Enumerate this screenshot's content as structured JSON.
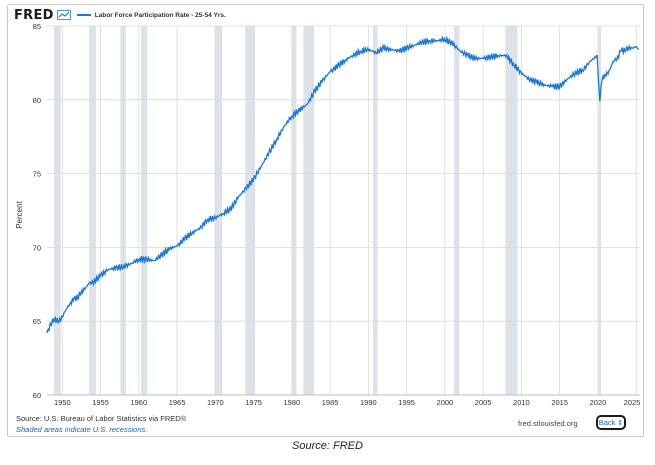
{
  "header": {
    "logo": "FRED",
    "logo_icon": "fred-graph-icon",
    "series_title": "Labor Force Participation Rate - 25-54 Yrs."
  },
  "footer": {
    "source": "Source: U.S. Bureau of Labor Statistics via FRED®",
    "shaded_note": "Shaded areas indicate U.S. recessions.",
    "url": "fred.stlouisfed.org",
    "back_label": "Back",
    "back_icon": "expand-arrows-icon"
  },
  "caption": "Source: FRED",
  "colors": {
    "line": "#1f77d4",
    "recession": "#dde2e8",
    "grid": "#d9d9d9"
  },
  "chart_data": {
    "type": "line",
    "title": "Labor Force Participation Rate - 25-54 Yrs.",
    "ylabel": "Percent",
    "xlabel": "",
    "xlim": [
      1948.0,
      2025.5
    ],
    "ylim": [
      60,
      85
    ],
    "y_ticks": [
      60,
      65,
      70,
      75,
      80,
      85
    ],
    "x_ticks": [
      1950,
      1955,
      1960,
      1965,
      1970,
      1975,
      1980,
      1985,
      1990,
      1995,
      2000,
      2005,
      2010,
      2015,
      2020,
      2025
    ],
    "x_tick_labels": [
      "1950",
      "1955",
      "1960",
      "1965",
      "1970",
      "1975",
      "1980",
      "1985",
      "1990",
      "1995",
      "2000",
      "2005",
      "2010",
      "2015",
      "2020",
      "2025"
    ],
    "grid": true,
    "recessions": [
      [
        1948.9,
        1949.8
      ],
      [
        1953.5,
        1954.4
      ],
      [
        1957.6,
        1958.3
      ],
      [
        1960.3,
        1961.1
      ],
      [
        1969.9,
        1970.9
      ],
      [
        1973.9,
        1975.2
      ],
      [
        1980.0,
        1980.6
      ],
      [
        1981.5,
        1982.9
      ],
      [
        1990.6,
        1991.2
      ],
      [
        2001.2,
        2001.9
      ],
      [
        2007.9,
        2009.5
      ],
      [
        2020.1,
        2020.4
      ]
    ],
    "series": [
      {
        "name": "Labor Force Participation Rate - 25-54 Yrs.",
        "x": [
          1948.0,
          1948.5,
          1949.0,
          1949.5,
          1950.0,
          1950.5,
          1951.0,
          1951.5,
          1952.0,
          1952.5,
          1953.0,
          1953.5,
          1954.0,
          1955.0,
          1956.0,
          1957.0,
          1958.0,
          1959.0,
          1960.0,
          1961.0,
          1962.0,
          1963.0,
          1964.0,
          1965.0,
          1966.0,
          1967.0,
          1968.0,
          1969.0,
          1970.0,
          1971.0,
          1972.0,
          1973.0,
          1974.0,
          1975.0,
          1976.0,
          1977.0,
          1978.0,
          1979.0,
          1980.0,
          1981.0,
          1982.0,
          1983.0,
          1984.0,
          1985.0,
          1986.0,
          1987.0,
          1988.0,
          1989.0,
          1990.0,
          1991.0,
          1992.0,
          1993.0,
          1994.0,
          1995.0,
          1996.0,
          1997.0,
          1998.0,
          1999.0,
          2000.0,
          2001.0,
          2002.0,
          2003.0,
          2004.0,
          2005.0,
          2006.0,
          2007.0,
          2008.0,
          2009.0,
          2010.0,
          2011.0,
          2012.0,
          2013.0,
          2014.0,
          2015.0,
          2016.0,
          2017.0,
          2018.0,
          2019.0,
          2019.9,
          2020.25,
          2020.4,
          2020.6,
          2021.0,
          2021.5,
          2022.0,
          2022.5,
          2023.0,
          2023.5,
          2024.0,
          2024.5,
          2025.0,
          2025.3
        ],
        "values": [
          64.2,
          64.8,
          65.2,
          64.9,
          65.3,
          65.8,
          66.2,
          66.5,
          66.6,
          67.0,
          67.2,
          67.6,
          67.6,
          68.1,
          68.5,
          68.6,
          68.7,
          68.9,
          69.2,
          69.2,
          69.1,
          69.5,
          69.9,
          70.1,
          70.6,
          71.0,
          71.3,
          71.9,
          72.0,
          72.3,
          72.6,
          73.4,
          74.0,
          74.6,
          75.5,
          76.4,
          77.3,
          78.2,
          78.9,
          79.3,
          79.7,
          80.6,
          81.3,
          81.9,
          82.3,
          82.7,
          83.0,
          83.3,
          83.4,
          83.2,
          83.5,
          83.4,
          83.3,
          83.5,
          83.7,
          83.9,
          84.0,
          84.0,
          84.1,
          83.8,
          83.3,
          83.0,
          82.8,
          82.8,
          82.9,
          83.0,
          83.0,
          82.4,
          81.8,
          81.4,
          81.2,
          81.0,
          80.9,
          80.9,
          81.4,
          81.8,
          82.0,
          82.6,
          83.0,
          79.9,
          80.9,
          81.5,
          81.6,
          82.0,
          82.6,
          82.8,
          83.3,
          83.4,
          83.5,
          83.5,
          83.6,
          83.4
        ]
      }
    ]
  }
}
